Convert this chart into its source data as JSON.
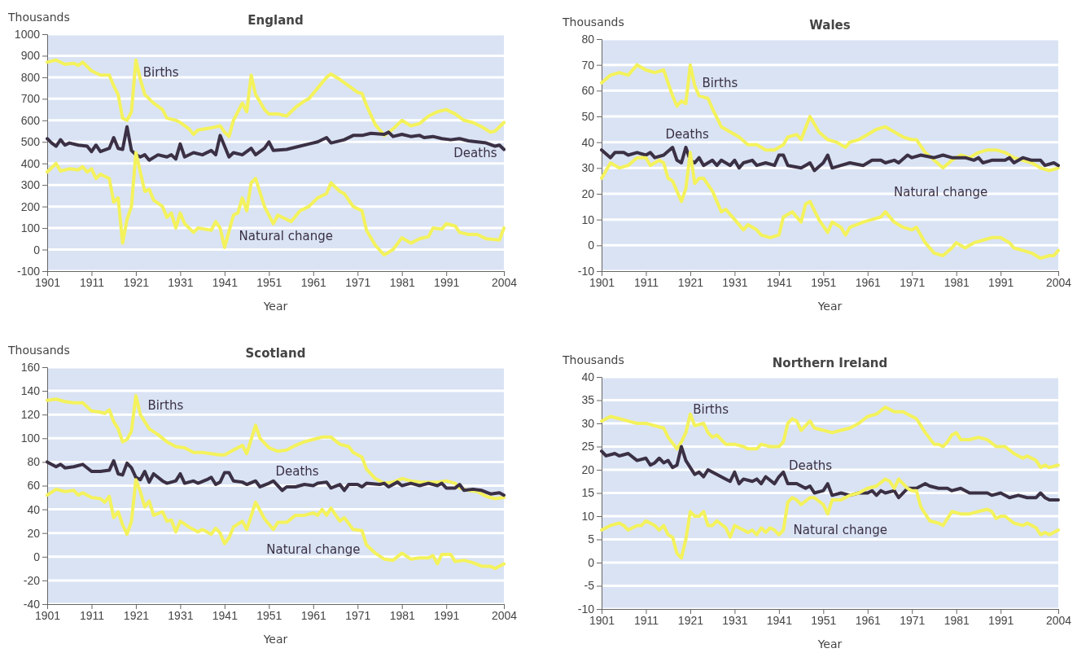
{
  "chart_data": [
    {
      "type": "line",
      "title": "England",
      "xlabel": "Year",
      "ylabel": "Thousands",
      "xlim": [
        1901,
        2004
      ],
      "xticks": [
        1901,
        1911,
        1921,
        1931,
        1941,
        1951,
        1961,
        1971,
        1981,
        1991,
        2004
      ],
      "ylim": [
        -100,
        1000
      ],
      "yticks": [
        -100,
        0,
        100,
        200,
        300,
        400,
        500,
        600,
        700,
        800,
        900,
        1000
      ],
      "grid": "y",
      "series": [
        {
          "name": "Births",
          "color": "#f4f25c",
          "x": [
            1901,
            1903,
            1905,
            1907,
            1908,
            1909,
            1911,
            1913,
            1915,
            1916,
            1917,
            1918,
            1919,
            1920,
            1921,
            1922,
            1923,
            1925,
            1927,
            1928,
            1930,
            1931,
            1933,
            1934,
            1935,
            1938,
            1940,
            1941,
            1942,
            1943,
            1945,
            1946,
            1947,
            1948,
            1950,
            1951,
            1953,
            1955,
            1957,
            1959,
            1960,
            1962,
            1964,
            1965,
            1967,
            1969,
            1971,
            1972,
            1973,
            1975,
            1977,
            1979,
            1981,
            1983,
            1985,
            1987,
            1989,
            1991,
            1993,
            1995,
            1997,
            1999,
            2001,
            2002,
            2004
          ],
          "values": [
            870,
            880,
            860,
            865,
            855,
            870,
            830,
            810,
            810,
            760,
            720,
            610,
            600,
            640,
            880,
            790,
            720,
            680,
            650,
            610,
            600,
            590,
            560,
            535,
            555,
            565,
            575,
            545,
            525,
            600,
            680,
            640,
            810,
            720,
            650,
            630,
            630,
            620,
            660,
            690,
            700,
            750,
            800,
            815,
            790,
            760,
            730,
            725,
            670,
            580,
            530,
            560,
            600,
            575,
            585,
            620,
            640,
            650,
            630,
            600,
            590,
            570,
            545,
            550,
            590
          ]
        },
        {
          "name": "Deaths",
          "color": "#3b3044",
          "x": [
            1901,
            1902,
            1903,
            1904,
            1905,
            1906,
            1908,
            1910,
            1911,
            1912,
            1913,
            1915,
            1916,
            1917,
            1918,
            1919,
            1920,
            1921,
            1922,
            1923,
            1924,
            1926,
            1928,
            1929,
            1930,
            1931,
            1932,
            1934,
            1936,
            1938,
            1939,
            1940,
            1941,
            1942,
            1943,
            1945,
            1947,
            1948,
            1950,
            1951,
            1952,
            1955,
            1958,
            1960,
            1962,
            1964,
            1965,
            1968,
            1970,
            1972,
            1974,
            1977,
            1978,
            1979,
            1981,
            1983,
            1985,
            1986,
            1988,
            1990,
            1992,
            1994,
            1996,
            1998,
            2000,
            2002,
            2003,
            2004
          ],
          "values": [
            515,
            495,
            480,
            510,
            485,
            495,
            485,
            480,
            455,
            485,
            455,
            470,
            520,
            470,
            465,
            570,
            460,
            440,
            430,
            440,
            415,
            440,
            430,
            440,
            420,
            490,
            430,
            450,
            440,
            460,
            440,
            530,
            480,
            430,
            450,
            440,
            470,
            440,
            470,
            500,
            460,
            465,
            480,
            490,
            500,
            520,
            495,
            510,
            530,
            530,
            540,
            535,
            545,
            525,
            535,
            525,
            530,
            520,
            525,
            515,
            510,
            515,
            505,
            500,
            495,
            480,
            485,
            465
          ]
        },
        {
          "name": "Natural change",
          "color": "#f4f25c",
          "x": [
            1901,
            1903,
            1904,
            1906,
            1908,
            1909,
            1910,
            1911,
            1912,
            1913,
            1915,
            1916,
            1917,
            1918,
            1919,
            1920,
            1921,
            1923,
            1924,
            1925,
            1927,
            1928,
            1929,
            1930,
            1931,
            1932,
            1934,
            1935,
            1938,
            1939,
            1940,
            1941,
            1943,
            1944,
            1945,
            1946,
            1947,
            1948,
            1950,
            1952,
            1953,
            1955,
            1956,
            1958,
            1960,
            1962,
            1964,
            1965,
            1967,
            1968,
            1970,
            1972,
            1973,
            1975,
            1977,
            1979,
            1981,
            1983,
            1985,
            1987,
            1988,
            1990,
            1991,
            1993,
            1994,
            1996,
            1998,
            2000,
            2003,
            2004
          ],
          "values": [
            360,
            400,
            365,
            375,
            370,
            385,
            360,
            375,
            330,
            350,
            330,
            220,
            240,
            30,
            140,
            200,
            450,
            270,
            280,
            230,
            200,
            150,
            170,
            100,
            170,
            120,
            80,
            100,
            90,
            130,
            100,
            10,
            160,
            170,
            240,
            180,
            310,
            330,
            200,
            120,
            160,
            140,
            130,
            180,
            200,
            240,
            260,
            310,
            270,
            260,
            200,
            180,
            90,
            20,
            -25,
            0,
            55,
            30,
            50,
            60,
            100,
            95,
            120,
            110,
            80,
            70,
            70,
            50,
            45,
            100
          ]
        }
      ]
    },
    {
      "type": "line",
      "title": "Wales",
      "xlabel": "Year",
      "ylabel": "Thousands",
      "xlim": [
        1901,
        2004
      ],
      "xticks": [
        1901,
        1911,
        1921,
        1931,
        1941,
        1951,
        1961,
        1971,
        1981,
        1991,
        2004
      ],
      "ylim": [
        -10,
        80
      ],
      "yticks": [
        -10,
        0,
        10,
        20,
        30,
        40,
        50,
        60,
        70,
        80
      ],
      "grid": "y",
      "series": [
        {
          "name": "Births",
          "color": "#f4f25c",
          "x": [
            1901,
            1903,
            1905,
            1907,
            1909,
            1911,
            1913,
            1915,
            1917,
            1918,
            1919,
            1920,
            1921,
            1922,
            1923,
            1925,
            1926,
            1928,
            1930,
            1932,
            1934,
            1936,
            1938,
            1940,
            1942,
            1943,
            1945,
            1946,
            1948,
            1950,
            1952,
            1954,
            1956,
            1957,
            1959,
            1961,
            1963,
            1965,
            1967,
            1969,
            1971,
            1972,
            1974,
            1976,
            1978,
            1980,
            1982,
            1984,
            1986,
            1988,
            1990,
            1992,
            1994,
            1996,
            1998,
            2000,
            2002,
            2004
          ],
          "values": [
            63,
            66,
            67,
            66,
            70,
            68,
            67,
            68,
            58,
            54,
            56,
            55,
            70,
            62,
            58,
            57,
            53,
            46,
            44,
            42,
            39,
            39,
            37,
            37,
            39,
            42,
            43,
            41,
            50,
            44,
            41,
            40,
            38,
            40,
            41,
            43,
            45,
            46,
            44,
            42,
            41,
            41,
            36,
            33,
            30,
            33,
            35,
            34,
            36,
            37,
            37,
            36,
            34,
            33,
            32,
            30,
            29,
            30
          ]
        },
        {
          "name": "Deaths",
          "color": "#3b3044",
          "x": [
            1901,
            1903,
            1904,
            1906,
            1907,
            1909,
            1911,
            1912,
            1913,
            1915,
            1917,
            1918,
            1919,
            1920,
            1921,
            1922,
            1923,
            1924,
            1926,
            1927,
            1928,
            1930,
            1931,
            1932,
            1933,
            1935,
            1936,
            1938,
            1940,
            1941,
            1942,
            1943,
            1946,
            1947,
            1948,
            1949,
            1951,
            1952,
            1953,
            1955,
            1957,
            1960,
            1962,
            1964,
            1965,
            1967,
            1968,
            1970,
            1971,
            1973,
            1976,
            1978,
            1980,
            1983,
            1985,
            1986,
            1987,
            1989,
            1990,
            1992,
            1993,
            1994,
            1996,
            1998,
            2000,
            2001,
            2003,
            2004
          ],
          "values": [
            37,
            34,
            36,
            36,
            35,
            36,
            35,
            36,
            34,
            35,
            38,
            33,
            32,
            38,
            33,
            32,
            34,
            31,
            33,
            31,
            33,
            31,
            33,
            30,
            32,
            33,
            31,
            32,
            31,
            35,
            35,
            31,
            30,
            31,
            32,
            29,
            32,
            35,
            30,
            31,
            32,
            31,
            33,
            33,
            32,
            33,
            32,
            35,
            34,
            35,
            34,
            35,
            34,
            34,
            33,
            34,
            32,
            33,
            33,
            33,
            34,
            32,
            34,
            33,
            33,
            31,
            32,
            31
          ]
        },
        {
          "name": "Natural change",
          "color": "#f4f25c",
          "x": [
            1901,
            1903,
            1905,
            1907,
            1909,
            1911,
            1912,
            1914,
            1915,
            1916,
            1917,
            1919,
            1920,
            1921,
            1922,
            1923,
            1924,
            1926,
            1928,
            1929,
            1931,
            1933,
            1934,
            1936,
            1937,
            1939,
            1941,
            1942,
            1944,
            1946,
            1947,
            1948,
            1950,
            1952,
            1953,
            1955,
            1956,
            1957,
            1960,
            1962,
            1964,
            1965,
            1967,
            1969,
            1971,
            1972,
            1974,
            1976,
            1978,
            1980,
            1981,
            1983,
            1984,
            1985,
            1987,
            1989,
            1991,
            1993,
            1994,
            1996,
            1998,
            2000,
            2002,
            2003,
            2004
          ],
          "values": [
            26,
            32,
            30,
            31,
            34,
            34,
            31,
            33,
            32,
            26,
            25,
            17,
            22,
            36,
            24,
            26,
            26,
            21,
            13,
            14,
            10,
            6,
            8,
            6,
            4,
            3,
            4,
            11,
            13,
            9,
            16,
            17,
            10,
            5,
            9,
            7,
            4,
            7,
            9,
            10,
            11,
            13,
            9,
            7,
            6,
            7,
            1,
            -3,
            -4,
            -1,
            1,
            -1,
            0,
            1,
            2,
            3,
            3,
            1,
            -1,
            -2,
            -3,
            -5,
            -4,
            -4,
            -2
          ]
        }
      ]
    },
    {
      "type": "line",
      "title": "Scotland",
      "xlabel": "Year",
      "ylabel": "Thousands",
      "xlim": [
        1901,
        2004
      ],
      "xticks": [
        1901,
        1911,
        1921,
        1931,
        1941,
        1951,
        1961,
        1971,
        1981,
        1991,
        2004
      ],
      "ylim": [
        -40,
        160
      ],
      "yticks": [
        -40,
        -20,
        0,
        20,
        40,
        60,
        80,
        100,
        120,
        140,
        160
      ],
      "grid": "y",
      "series": [
        {
          "name": "Births",
          "color": "#f4f25c",
          "x": [
            1901,
            1903,
            1905,
            1907,
            1909,
            1911,
            1913,
            1914,
            1915,
            1916,
            1917,
            1918,
            1919,
            1920,
            1921,
            1922,
            1924,
            1926,
            1928,
            1930,
            1932,
            1934,
            1936,
            1938,
            1940,
            1941,
            1943,
            1945,
            1946,
            1948,
            1949,
            1951,
            1953,
            1955,
            1957,
            1959,
            1961,
            1963,
            1965,
            1967,
            1969,
            1970,
            1972,
            1973,
            1975,
            1977,
            1979,
            1981,
            1983,
            1985,
            1987,
            1989,
            1991,
            1993,
            1994,
            1996,
            1998,
            2000,
            2002,
            2004
          ],
          "values": [
            132,
            133,
            131,
            130,
            130,
            123,
            122,
            121,
            124,
            114,
            108,
            97,
            99,
            106,
            136,
            120,
            108,
            103,
            97,
            93,
            92,
            88,
            88,
            87,
            86,
            86,
            90,
            94,
            87,
            111,
            100,
            92,
            89,
            90,
            94,
            97,
            99,
            101,
            101,
            95,
            93,
            88,
            84,
            74,
            66,
            62,
            63,
            66,
            64,
            63,
            63,
            63,
            64,
            62,
            58,
            56,
            55,
            51,
            49,
            50
          ]
        },
        {
          "name": "Deaths",
          "color": "#3b3044",
          "x": [
            1901,
            1903,
            1904,
            1905,
            1907,
            1909,
            1911,
            1913,
            1915,
            1916,
            1917,
            1918,
            1919,
            1920,
            1921,
            1922,
            1923,
            1924,
            1925,
            1927,
            1928,
            1930,
            1931,
            1932,
            1934,
            1935,
            1937,
            1938,
            1939,
            1940,
            1941,
            1942,
            1943,
            1945,
            1946,
            1948,
            1949,
            1951,
            1952,
            1954,
            1955,
            1957,
            1959,
            1961,
            1962,
            1964,
            1965,
            1967,
            1968,
            1969,
            1971,
            1972,
            1973,
            1976,
            1977,
            1978,
            1980,
            1981,
            1983,
            1985,
            1987,
            1989,
            1990,
            1991,
            1993,
            1994,
            1995,
            1997,
            1999,
            2001,
            2003,
            2004
          ],
          "values": [
            80,
            76,
            78,
            75,
            76,
            78,
            72,
            72,
            73,
            81,
            70,
            69,
            79,
            75,
            67,
            65,
            72,
            63,
            70,
            64,
            62,
            64,
            70,
            62,
            64,
            62,
            65,
            67,
            61,
            63,
            71,
            71,
            64,
            63,
            61,
            64,
            59,
            62,
            64,
            56,
            59,
            59,
            61,
            60,
            62,
            63,
            58,
            61,
            56,
            61,
            61,
            59,
            62,
            61,
            62,
            59,
            63,
            60,
            62,
            60,
            62,
            60,
            62,
            58,
            58,
            61,
            56,
            57,
            56,
            53,
            54,
            52
          ]
        },
        {
          "name": "Natural change",
          "color": "#f4f25c",
          "x": [
            1901,
            1903,
            1905,
            1907,
            1908,
            1909,
            1911,
            1913,
            1914,
            1915,
            1916,
            1917,
            1918,
            1919,
            1920,
            1921,
            1922,
            1923,
            1924,
            1925,
            1927,
            1928,
            1929,
            1930,
            1931,
            1933,
            1935,
            1936,
            1938,
            1939,
            1940,
            1941,
            1942,
            1943,
            1945,
            1946,
            1948,
            1949,
            1950,
            1952,
            1953,
            1955,
            1957,
            1959,
            1961,
            1962,
            1963,
            1964,
            1965,
            1967,
            1968,
            1970,
            1972,
            1973,
            1975,
            1977,
            1979,
            1981,
            1983,
            1985,
            1987,
            1988,
            1989,
            1990,
            1992,
            1993,
            1995,
            1997,
            1999,
            2001,
            2002,
            2004
          ],
          "values": [
            52,
            57,
            55,
            56,
            52,
            54,
            50,
            49,
            46,
            51,
            33,
            38,
            27,
            19,
            30,
            65,
            55,
            42,
            47,
            35,
            38,
            30,
            31,
            21,
            30,
            25,
            21,
            23,
            19,
            24,
            20,
            11,
            16,
            25,
            30,
            23,
            46,
            39,
            32,
            23,
            29,
            29,
            35,
            35,
            37,
            35,
            40,
            35,
            41,
            30,
            33,
            23,
            22,
            10,
            3,
            -2,
            -3,
            3,
            -2,
            -1,
            -1,
            1,
            -6,
            2,
            2,
            -4,
            -3,
            -5,
            -8,
            -8,
            -10,
            -6
          ]
        }
      ]
    },
    {
      "type": "line",
      "title": "Northern Ireland",
      "xlabel": "Year",
      "ylabel": "Thousands",
      "xlim": [
        1901,
        2004
      ],
      "xticks": [
        1901,
        1911,
        1921,
        1931,
        1941,
        1951,
        1961,
        1971,
        1981,
        1991,
        2004
      ],
      "ylim": [
        -10,
        40
      ],
      "yticks": [
        -10,
        -5,
        0,
        5,
        10,
        15,
        20,
        25,
        30,
        35,
        40
      ],
      "grid": "y",
      "series": [
        {
          "name": "Births",
          "color": "#f4f25c",
          "x": [
            1901,
            1903,
            1905,
            1907,
            1909,
            1911,
            1913,
            1915,
            1916,
            1918,
            1919,
            1920,
            1921,
            1922,
            1924,
            1925,
            1926,
            1927,
            1929,
            1931,
            1933,
            1934,
            1936,
            1937,
            1939,
            1941,
            1942,
            1943,
            1944,
            1945,
            1946,
            1948,
            1949,
            1951,
            1953,
            1955,
            1957,
            1959,
            1961,
            1963,
            1965,
            1967,
            1969,
            1971,
            1972,
            1974,
            1976,
            1977,
            1978,
            1979,
            1980,
            1981,
            1982,
            1984,
            1986,
            1988,
            1990,
            1992,
            1994,
            1996,
            1997,
            1999,
            2000,
            2001,
            2002,
            2004
          ],
          "values": [
            30.5,
            31.5,
            31,
            30.5,
            30,
            30,
            29.5,
            29,
            27,
            24.5,
            26,
            28,
            32,
            29.5,
            30,
            28,
            27,
            27.5,
            25.5,
            25.5,
            25,
            24.5,
            24.5,
            25.5,
            25,
            25,
            26,
            30,
            31,
            30.5,
            28.5,
            30.5,
            29,
            28.5,
            28,
            28.5,
            29,
            30,
            31.5,
            32,
            33.5,
            32.5,
            32.5,
            31.5,
            31,
            28,
            25.5,
            25.5,
            25,
            26,
            27.5,
            28,
            26.5,
            26.5,
            27,
            26.5,
            25,
            25,
            23.5,
            22.5,
            23,
            22,
            20.5,
            21,
            20.5,
            21
          ]
        },
        {
          "name": "Deaths",
          "color": "#3b3044",
          "x": [
            1901,
            1902,
            1904,
            1905,
            1907,
            1909,
            1911,
            1912,
            1913,
            1914,
            1915,
            1916,
            1917,
            1918,
            1919,
            1920,
            1922,
            1923,
            1924,
            1925,
            1927,
            1929,
            1930,
            1931,
            1932,
            1933,
            1935,
            1936,
            1937,
            1938,
            1940,
            1941,
            1942,
            1943,
            1945,
            1947,
            1948,
            1949,
            1951,
            1952,
            1953,
            1955,
            1957,
            1959,
            1961,
            1962,
            1963,
            1964,
            1965,
            1967,
            1968,
            1970,
            1972,
            1974,
            1975,
            1977,
            1979,
            1980,
            1982,
            1984,
            1986,
            1988,
            1989,
            1991,
            1993,
            1995,
            1997,
            1999,
            2000,
            2001,
            2002,
            2004
          ],
          "values": [
            24,
            23,
            23.5,
            23,
            23.5,
            22,
            22.5,
            21,
            21.5,
            22.5,
            21.5,
            22,
            20.5,
            21,
            25,
            22,
            19,
            19.5,
            18.5,
            20,
            19,
            18,
            17.5,
            19.5,
            17,
            18,
            17.5,
            18,
            17,
            18.5,
            17,
            18.5,
            19.5,
            17,
            17,
            16,
            16.5,
            15,
            15.5,
            17,
            14.5,
            15,
            14.5,
            15,
            15,
            15.5,
            14.5,
            15.5,
            15,
            15.5,
            14,
            16,
            16,
            17,
            16.5,
            16,
            16,
            15.5,
            16,
            15,
            15,
            15,
            14.5,
            15,
            14,
            14.5,
            14,
            14,
            15,
            14,
            13.5,
            13.5
          ]
        },
        {
          "name": "Natural change",
          "color": "#f4f25c",
          "x": [
            1901,
            1903,
            1905,
            1906,
            1907,
            1909,
            1910,
            1911,
            1913,
            1914,
            1915,
            1916,
            1917,
            1918,
            1919,
            1920,
            1921,
            1922,
            1923,
            1924,
            1925,
            1926,
            1927,
            1929,
            1930,
            1931,
            1933,
            1934,
            1935,
            1936,
            1937,
            1938,
            1939,
            1940,
            1941,
            1942,
            1943,
            1944,
            1945,
            1946,
            1948,
            1949,
            1951,
            1952,
            1953,
            1955,
            1957,
            1959,
            1961,
            1963,
            1965,
            1966,
            1967,
            1968,
            1970,
            1971,
            1972,
            1973,
            1975,
            1977,
            1978,
            1979,
            1980,
            1982,
            1984,
            1986,
            1988,
            1989,
            1990,
            1991,
            1992,
            1994,
            1996,
            1997,
            1999,
            2000,
            2001,
            2002,
            2004
          ],
          "values": [
            7,
            8,
            8.5,
            8,
            7,
            8,
            8,
            9,
            8,
            7,
            8,
            6,
            5.5,
            2,
            1,
            5,
            11,
            10,
            10,
            11,
            8,
            8,
            9,
            7.5,
            5.5,
            8,
            7,
            6.5,
            7,
            6,
            7.5,
            6.5,
            7.5,
            7,
            6,
            7,
            13,
            14,
            13.5,
            12.5,
            14,
            14,
            12.5,
            10.5,
            13.5,
            13.5,
            14.5,
            15,
            16,
            16.5,
            18,
            17.5,
            16,
            18,
            16,
            15.5,
            15.5,
            12,
            9,
            8.5,
            8,
            9.5,
            11,
            10.5,
            10.5,
            11,
            11.5,
            11,
            9.5,
            10,
            10,
            8.5,
            8,
            8.5,
            7.5,
            6,
            6.5,
            6,
            7
          ]
        }
      ]
    }
  ]
}
